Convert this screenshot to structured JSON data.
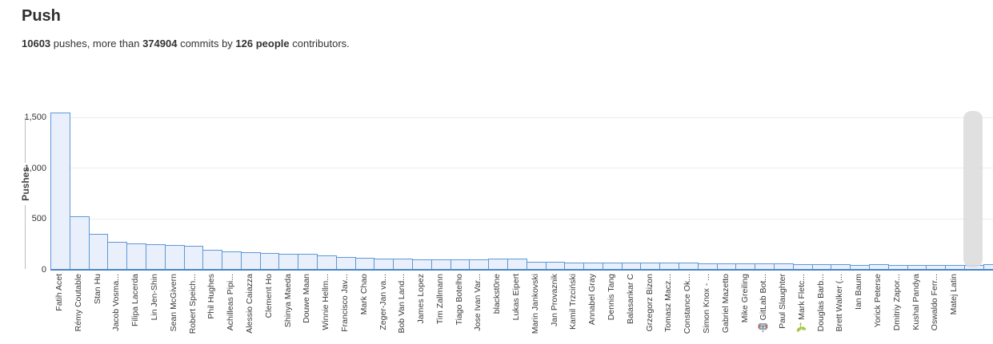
{
  "header": {
    "title": "Push",
    "summary": {
      "pushes_count": "10603",
      "seg_pushes": " pushes, more than ",
      "commits_count": "374904",
      "seg_commits": " commits by ",
      "people_count": "126 people",
      "seg_tail": " contributors."
    }
  },
  "colors": {
    "bar_fill": "#e9f0fb",
    "bar_stroke": "#5e97d5",
    "baseline": "#4a86c8",
    "grid": "#ececec",
    "axis_line": "#bdbdbd",
    "text_primary": "#2e2e2e",
    "text_secondary": "#333333",
    "tick_text": "#333333",
    "label_text": "#3a3a3a",
    "ylabel_text": "#444444",
    "scrollbar": "#dcdcdc"
  },
  "chart_data": {
    "type": "bar",
    "title": "Push",
    "xlabel": "",
    "ylabel": "Pushes",
    "ylim": [
      0,
      1600
    ],
    "grid": true,
    "legend": "none",
    "y_axis": {
      "ticks": [
        {
          "label": "0",
          "value": 0
        },
        {
          "label": "500",
          "value": 500
        },
        {
          "label": "1,000",
          "value": 1000
        },
        {
          "label": "1,500",
          "value": 1500
        }
      ]
    },
    "categories": [
      "Fatih Acet",
      "Rémy Coutable",
      "Stan Hu",
      "Jacob Vosma...",
      "Filipa Lacerda",
      "Lin Jen-Shin",
      "Sean McGivern",
      "Robert Speich...",
      "Phil Hughes",
      "Achilleas Pipi...",
      "Alessio Caiazza",
      "Clement Ho",
      "Shinya Maeda",
      "Douwe Maan",
      "Winnie Hellm...",
      "Francisco Jav...",
      "Mark Chao",
      "Zeger-Jan va...",
      "Bob Van Land...",
      "James Lopez",
      "Tim Zallmann",
      "Tiago Botelho",
      "Jose Ivan Var...",
      "blackst0ne",
      "Lukas Eipert",
      "Marin Jankovski",
      "Jan Provaznik",
      "Kamil Trzciński",
      "Annabel Gray",
      "Dennis Tang",
      "Balasankar C",
      "Grzegorz Bizon",
      "Tomasz Macz...",
      "Constance Ok...",
      "Simon Knox - ...",
      "Gabriel Mazetto",
      "Mike Greiling",
      "🤖 GitLab Bot...",
      "Paul Slaughter",
      "🌱 Mark Fletc...",
      "Douglas Barb...",
      "Brett Walker (...",
      "Ian Baum",
      "Yorick Peterse",
      "Dmitriy Zapor...",
      "Kushal Pandya",
      "Oswaldo Ferr...",
      "Matej Latin",
      "",
      ""
    ],
    "values": [
      1550,
      530,
      355,
      272,
      262,
      252,
      242,
      232,
      196,
      182,
      172,
      164,
      160,
      157,
      140,
      126,
      118,
      112,
      108,
      104,
      103,
      102,
      101,
      110,
      107,
      76,
      75,
      74,
      73,
      72,
      70,
      69,
      68,
      67,
      66,
      66,
      66,
      66,
      66,
      52,
      53,
      52,
      51,
      53,
      50,
      50,
      49,
      48,
      50,
      58
    ]
  }
}
